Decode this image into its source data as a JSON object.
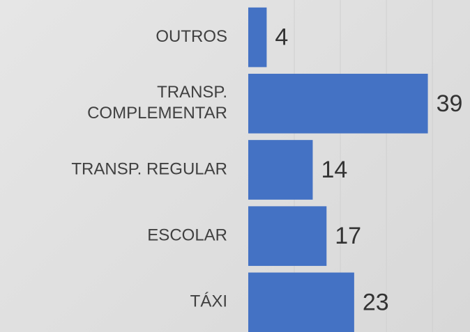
{
  "chart_data": {
    "type": "hbar",
    "categories": [
      "OUTROS",
      "TRANSP.\nCOMPLEMENTAR",
      "TRANSP. REGULAR",
      "ESCOLAR",
      "TÁXI"
    ],
    "values": [
      4,
      39,
      14,
      17,
      23
    ],
    "color": "#4472c4",
    "xlim": [
      0,
      48
    ],
    "xticks": [
      0,
      10,
      20,
      30,
      40
    ],
    "grid": true
  }
}
